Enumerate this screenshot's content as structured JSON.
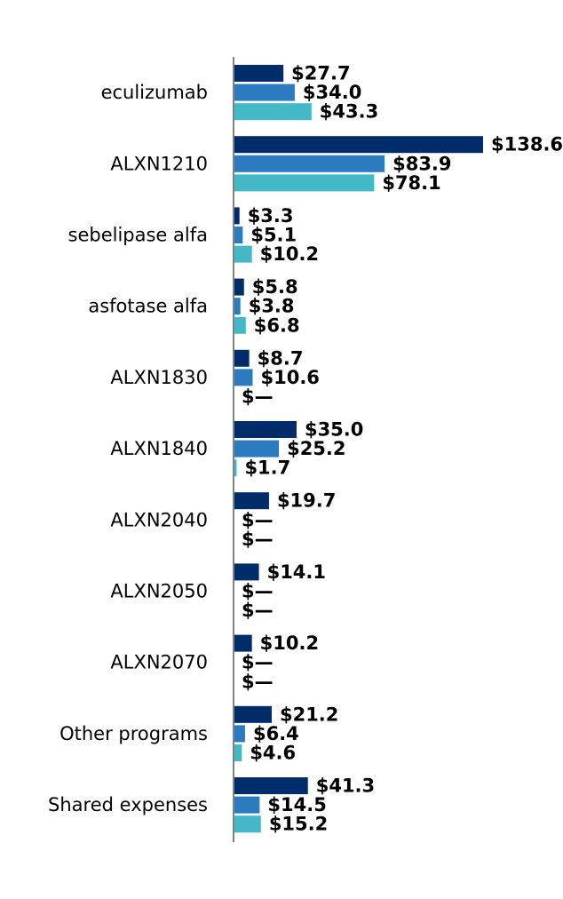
{
  "chart_data": {
    "type": "bar",
    "orientation": "horizontal",
    "categories": [
      "eculizumab",
      "ALXN1210",
      "sebelipase alfa",
      "asfotase alfa",
      "ALXN1830",
      "ALXN1840",
      "ALXN2040",
      "ALXN2050",
      "ALXN2070",
      "Other programs",
      "Shared expenses"
    ],
    "series": [
      {
        "color": "#002d6a",
        "values": [
          27.7,
          138.6,
          3.3,
          5.8,
          8.7,
          35.0,
          19.7,
          14.1,
          10.2,
          21.2,
          41.3
        ],
        "labels": [
          "$27.7",
          "$138.6",
          "$3.3",
          "$5.8",
          "$8.7",
          "$35.0",
          "$19.7",
          "$14.1",
          "$10.2",
          "$21.2",
          "$41.3"
        ]
      },
      {
        "color": "#2c7bbf",
        "values": [
          34.0,
          83.9,
          5.1,
          3.8,
          10.6,
          25.2,
          0,
          0,
          0,
          6.4,
          14.5
        ],
        "labels": [
          "$34.0",
          "$83.9",
          "$5.1",
          "$3.8",
          "$10.6",
          "$25.2",
          "$—",
          "$—",
          "$—",
          "$6.4",
          "$14.5"
        ]
      },
      {
        "color": "#45b8c8",
        "values": [
          43.3,
          78.1,
          10.2,
          6.8,
          0,
          1.7,
          0,
          0,
          0,
          4.6,
          15.2
        ],
        "labels": [
          "$43.3",
          "$78.1",
          "$10.2",
          "$6.8",
          "$—",
          "$1.7",
          "$—",
          "$—",
          "$—",
          "$4.6",
          "$15.2"
        ]
      }
    ],
    "axis_color": "#808080",
    "grid": false,
    "legend": "none",
    "xlim": [
      0,
      138.6
    ]
  }
}
